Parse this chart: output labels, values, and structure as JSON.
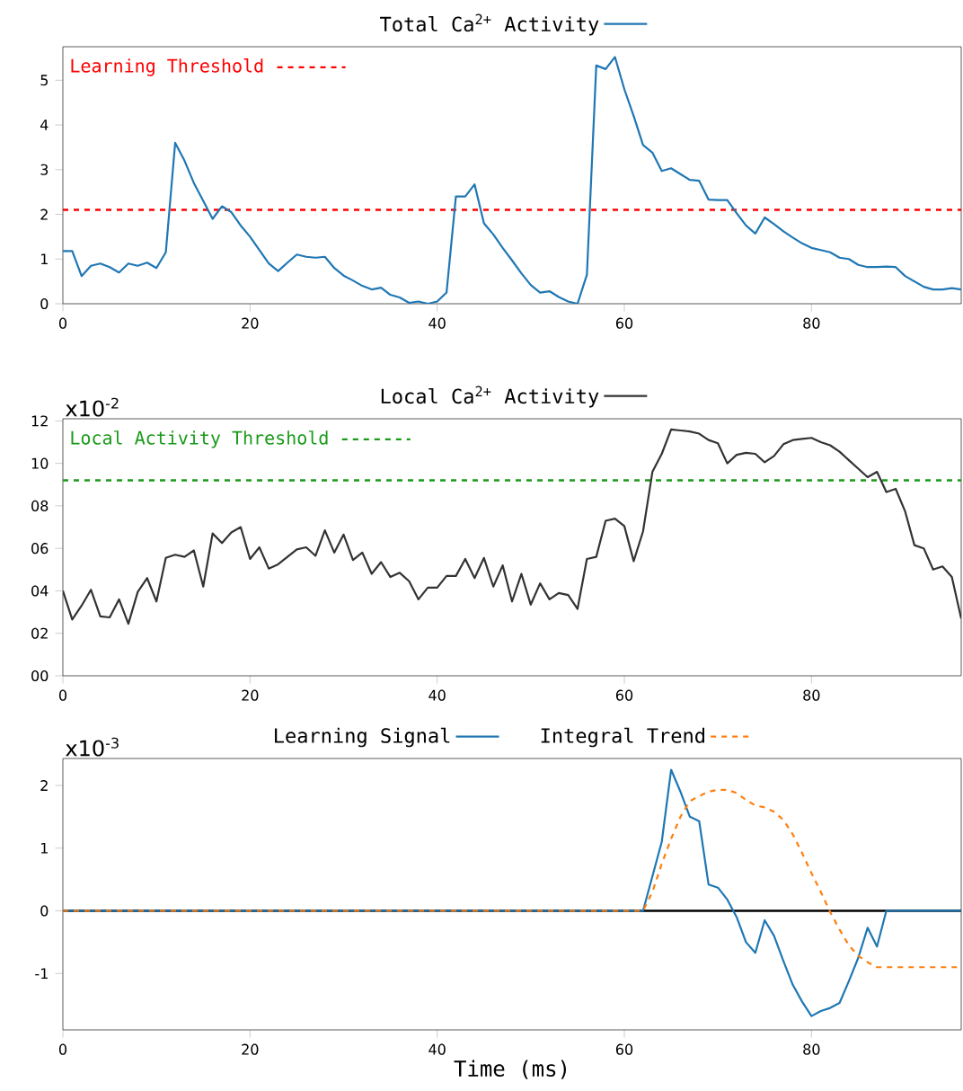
{
  "chart_data": [
    {
      "type": "line",
      "legend": "top",
      "xlim": [
        0,
        96
      ],
      "xticks": [
        0,
        20,
        40,
        60,
        80
      ],
      "ylim": [
        0,
        5.75
      ],
      "yticks": [
        0,
        1,
        2,
        3,
        4,
        5
      ],
      "x": [
        0,
        1,
        2,
        3,
        4,
        5,
        6,
        7,
        8,
        9,
        10,
        11,
        12,
        13,
        14,
        15,
        16,
        17,
        18,
        19,
        20,
        21,
        22,
        23,
        24,
        25,
        26,
        27,
        28,
        29,
        30,
        31,
        32,
        33,
        34,
        35,
        36,
        37,
        38,
        39,
        40,
        41,
        42,
        43,
        44,
        45,
        46,
        47,
        48,
        49,
        50,
        51,
        52,
        53,
        54,
        55,
        56,
        57,
        58,
        59,
        60,
        61,
        62,
        63,
        64,
        65,
        66,
        67,
        68,
        69,
        70,
        71,
        72,
        73,
        74,
        75,
        76,
        77,
        78,
        79,
        80,
        81,
        82,
        83,
        84,
        85,
        86,
        87,
        88,
        89,
        90,
        91,
        92,
        93,
        94,
        95,
        96
      ],
      "series": [
        {
          "name": "Total Ca$^{2+}$ Activity",
          "color": "#1f77b4",
          "line_style": "solid",
          "values": [
            1.18,
            1.18,
            0.62,
            0.85,
            0.9,
            0.82,
            0.7,
            0.9,
            0.85,
            0.92,
            0.8,
            1.15,
            3.6,
            3.2,
            2.7,
            2.3,
            1.9,
            2.18,
            2.05,
            1.75,
            1.5,
            1.2,
            0.9,
            0.73,
            0.92,
            1.1,
            1.05,
            1.03,
            1.05,
            0.8,
            0.63,
            0.52,
            0.4,
            0.32,
            0.36,
            0.2,
            0.14,
            0.02,
            0.05,
            0.0,
            0.05,
            0.25,
            2.4,
            2.4,
            2.67,
            1.8,
            1.55,
            1.25,
            0.97,
            0.68,
            0.42,
            0.25,
            0.28,
            0.15,
            0.05,
            0.0,
            0.65,
            5.33,
            5.25,
            5.52,
            4.8,
            4.2,
            3.55,
            3.38,
            2.97,
            3.03,
            2.9,
            2.77,
            2.75,
            2.33,
            2.32,
            2.32,
            2.03,
            1.75,
            1.57,
            1.93,
            1.78,
            1.62,
            1.48,
            1.35,
            1.25,
            1.2,
            1.15,
            1.03,
            1.0,
            0.87,
            0.82,
            0.82,
            0.83,
            0.82,
            0.62,
            0.5,
            0.38,
            0.32,
            0.32,
            0.35,
            0.32
          ]
        }
      ],
      "ref_lines": [
        {
          "axis": "y",
          "value": 2.1,
          "label": "Learning Threshold",
          "color": "#ff0000",
          "line_style": "dashed"
        }
      ]
    },
    {
      "type": "line",
      "legend": "top",
      "xlim": [
        0,
        96
      ],
      "xticks": [
        0,
        20,
        40,
        60,
        80
      ],
      "ylim": [
        0,
        12.1
      ],
      "yticks": [
        {
          "value": 0,
          "label": "00"
        },
        {
          "value": 2,
          "label": "02"
        },
        {
          "value": 4,
          "label": "04"
        },
        {
          "value": 6,
          "label": "06"
        },
        {
          "value": 8,
          "label": "08"
        },
        {
          "value": 10,
          "label": "10"
        },
        {
          "value": 12,
          "label": "12"
        }
      ],
      "annotations": [
        "x10$^{-2}$"
      ],
      "x": [
        0,
        1,
        2,
        3,
        4,
        5,
        6,
        7,
        8,
        9,
        10,
        11,
        12,
        13,
        14,
        15,
        16,
        17,
        18,
        19,
        20,
        21,
        22,
        23,
        24,
        25,
        26,
        27,
        28,
        29,
        30,
        31,
        32,
        33,
        34,
        35,
        36,
        37,
        38,
        39,
        40,
        41,
        42,
        43,
        44,
        45,
        46,
        47,
        48,
        49,
        50,
        51,
        52,
        53,
        54,
        55,
        56,
        57,
        58,
        59,
        60,
        61,
        62,
        63,
        64,
        65,
        66,
        67,
        68,
        69,
        70,
        71,
        72,
        73,
        74,
        75,
        76,
        77,
        78,
        79,
        80,
        81,
        82,
        83,
        84,
        85,
        86,
        87,
        88,
        89,
        90,
        91,
        92,
        93,
        94,
        95,
        96
      ],
      "series": [
        {
          "name": "Local Ca$^{2+}$ Activity",
          "color": "#333333",
          "line_style": "solid",
          "values": [
            4.0,
            2.65,
            3.3,
            4.05,
            2.8,
            2.75,
            3.6,
            2.45,
            3.95,
            4.6,
            3.5,
            5.55,
            5.7,
            5.6,
            5.9,
            4.2,
            6.7,
            6.25,
            6.75,
            7.0,
            5.5,
            6.05,
            5.05,
            5.25,
            5.6,
            5.95,
            6.05,
            5.65,
            6.85,
            5.8,
            6.65,
            5.45,
            5.8,
            4.8,
            5.35,
            4.65,
            4.85,
            4.45,
            3.6,
            4.15,
            4.15,
            4.7,
            4.7,
            5.5,
            4.6,
            5.55,
            4.2,
            5.2,
            3.5,
            4.8,
            3.35,
            4.35,
            3.6,
            3.9,
            3.8,
            3.15,
            5.5,
            5.6,
            7.3,
            7.4,
            7.05,
            5.4,
            6.8,
            9.6,
            10.45,
            11.6,
            11.55,
            11.5,
            11.4,
            11.1,
            10.95,
            10.0,
            10.4,
            10.5,
            10.45,
            10.05,
            10.35,
            10.9,
            11.1,
            11.15,
            11.2,
            11.0,
            10.85,
            10.55,
            10.15,
            9.75,
            9.35,
            9.6,
            8.65,
            8.8,
            7.75,
            6.15,
            6.0,
            5.0,
            5.15,
            4.65,
            2.7
          ]
        }
      ],
      "ref_lines": [
        {
          "axis": "y",
          "value": 9.2,
          "label": "Local Activity Threshold",
          "color": "#1a9a1a",
          "line_style": "dashed"
        }
      ]
    },
    {
      "type": "line",
      "legend": "top",
      "xlim": [
        0,
        96
      ],
      "xticks": [
        0,
        20,
        40,
        60,
        80
      ],
      "ylim": [
        -1.9,
        2.43
      ],
      "yticks": [
        -1,
        0,
        1,
        2
      ],
      "xlabel": "Time (ms)",
      "annotations": [
        "x10$^{-3}$"
      ],
      "series": [
        {
          "name": "Learning Signal",
          "color": "#1f77b4",
          "line_style": "solid",
          "x": [
            0,
            62,
            63,
            64,
            65,
            66,
            67,
            68,
            69,
            70,
            71,
            72,
            73,
            74,
            75,
            76,
            77,
            78,
            79,
            80,
            81,
            82,
            83,
            84,
            85,
            86,
            87,
            88,
            96
          ],
          "values": [
            0,
            0,
            0.55,
            1.1,
            2.25,
            1.9,
            1.5,
            1.43,
            0.42,
            0.37,
            0.18,
            -0.1,
            -0.5,
            -0.67,
            -0.15,
            -0.4,
            -0.8,
            -1.18,
            -1.45,
            -1.68,
            -1.6,
            -1.55,
            -1.47,
            -1.12,
            -0.75,
            -0.27,
            -0.57,
            0,
            0
          ]
        },
        {
          "name": "Integral Trend",
          "color": "#ff7f0e",
          "line_style": "dashed",
          "x": [
            0,
            62,
            63,
            64,
            65,
            66,
            67,
            68,
            69,
            70,
            71,
            72,
            73,
            74,
            75,
            76,
            77,
            78,
            79,
            80,
            81,
            82,
            83,
            84,
            85,
            86,
            87,
            88,
            96
          ],
          "values": [
            0,
            0,
            0.3,
            0.75,
            1.15,
            1.5,
            1.75,
            1.83,
            1.9,
            1.93,
            1.93,
            1.88,
            1.77,
            1.68,
            1.65,
            1.58,
            1.45,
            1.22,
            0.92,
            0.6,
            0.3,
            -0.02,
            -0.3,
            -0.55,
            -0.72,
            -0.82,
            -0.9,
            -0.9,
            -0.9
          ]
        }
      ],
      "ref_lines": [
        {
          "axis": "y",
          "value": 0,
          "color": "#000000",
          "line_style": "solid"
        }
      ]
    }
  ]
}
